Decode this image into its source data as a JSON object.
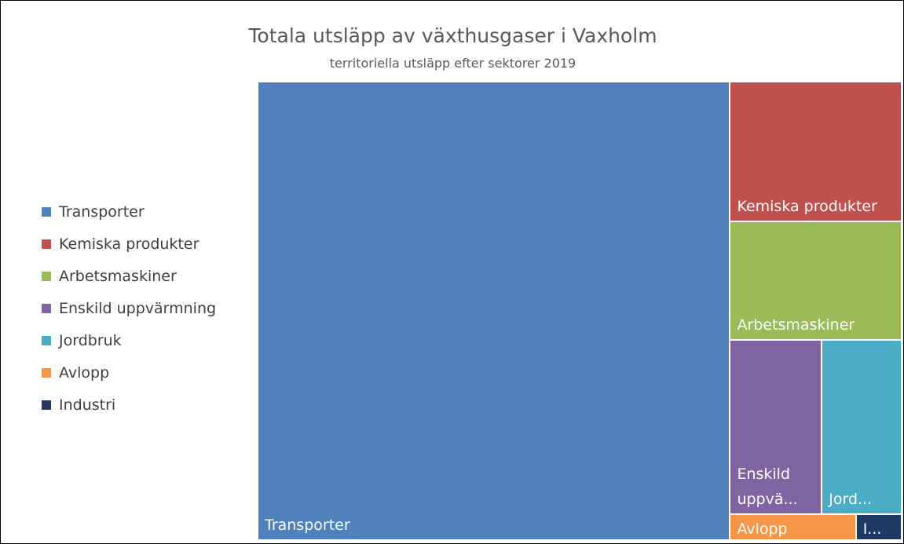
{
  "chart_data": {
    "type": "treemap",
    "title": "Totala utsläpp av växthusgaser i Vaxholm",
    "subtitle": "territoriella utsläpp efter sektorer 2019",
    "categories": [
      "Transporter",
      "Kemiska produkter",
      "Arbetsmaskiner",
      "Enskild uppvärmning",
      "Jordbruk",
      "Avlopp",
      "Industri"
    ],
    "tile_labels": [
      "Transporter",
      "Kemiska produkter",
      "Arbetsmaskiner",
      "Enskild uppvä...",
      "Jord...",
      "Avlopp",
      "I..."
    ],
    "values": [
      73.2,
      8.1,
      6.9,
      5.4,
      4.7,
      1.1,
      0.4
    ],
    "colors": [
      "#4f81bd",
      "#c0504d",
      "#9bbb59",
      "#8064a2",
      "#4bacc6",
      "#f79646",
      "#1f3864"
    ],
    "legend": "left"
  }
}
